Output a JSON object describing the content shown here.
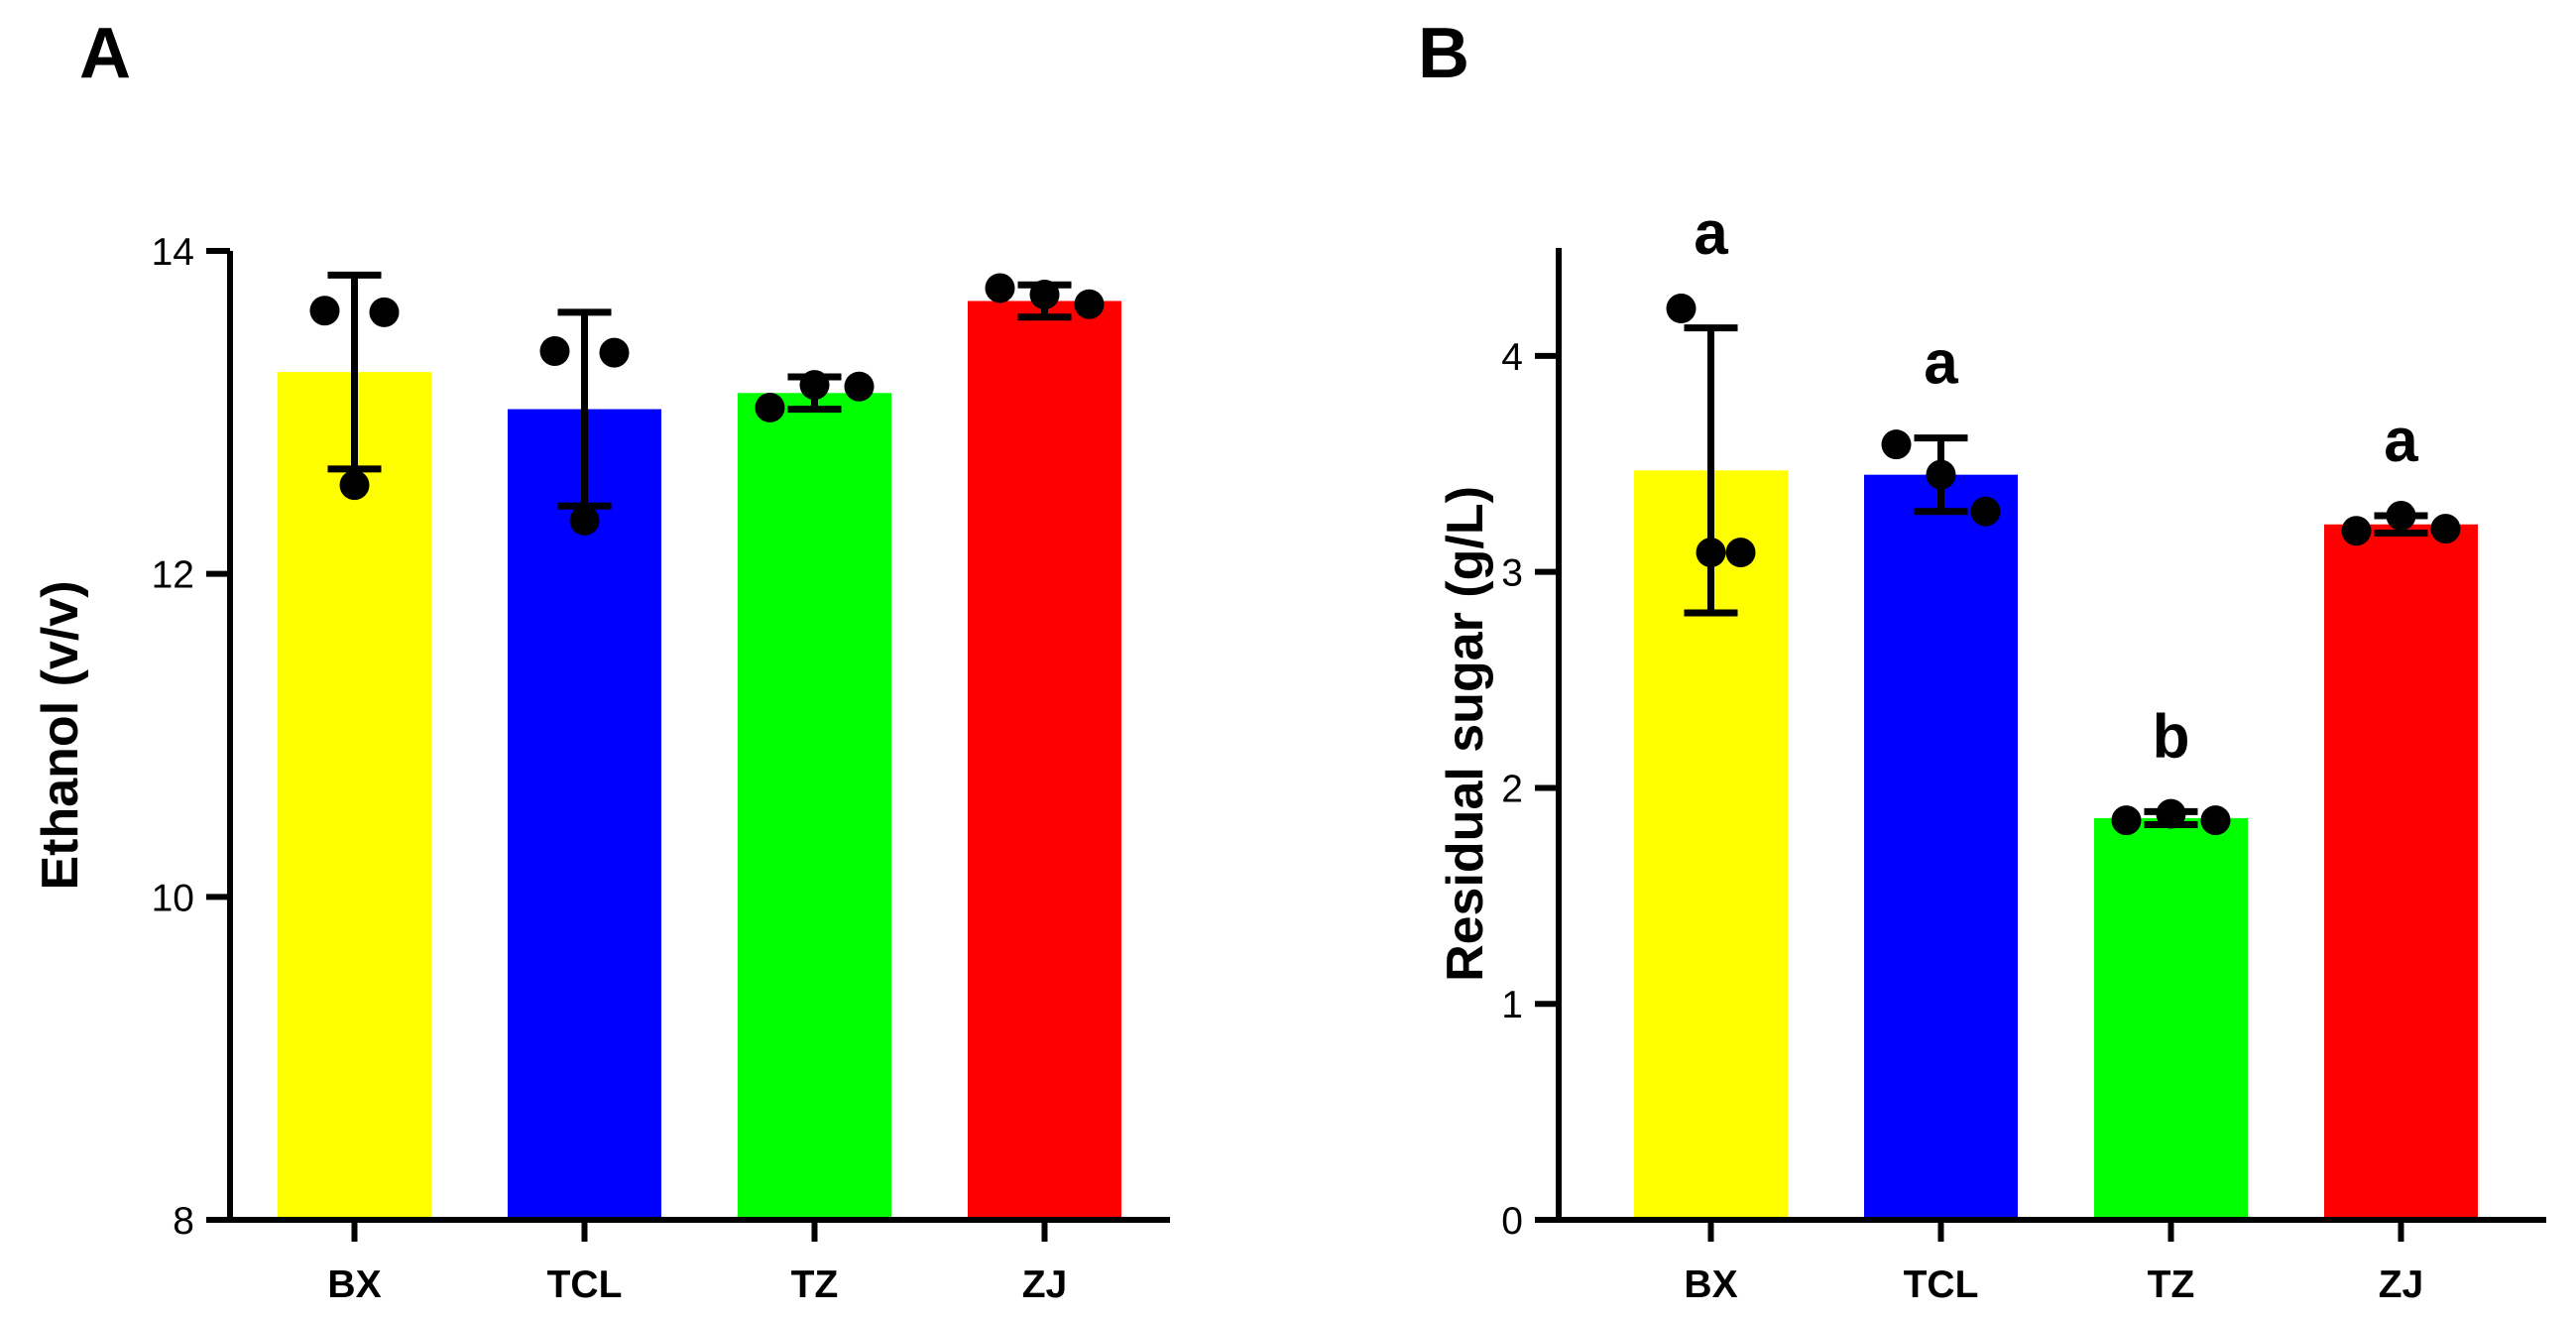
{
  "chart_data": [
    {
      "panel": "A",
      "type": "bar",
      "title": "",
      "xlabel": "",
      "ylabel": "Ethanol (v/v)",
      "ylim": [
        8,
        14
      ],
      "yticks": [
        8,
        10,
        12,
        14
      ],
      "categories": [
        "BX",
        "TCL",
        "TZ",
        "ZJ"
      ],
      "colors": [
        "#ffff00",
        "#0000ff",
        "#00ff00",
        "#ff0000"
      ],
      "values": [
        13.25,
        13.02,
        13.12,
        13.69
      ],
      "error": [
        0.6,
        0.6,
        0.1,
        0.1
      ],
      "points": [
        [
          13.63,
          13.62,
          12.55
        ],
        [
          13.38,
          13.37,
          12.33
        ],
        [
          13.03,
          13.17,
          13.16
        ],
        [
          13.77,
          13.73,
          13.67
        ]
      ],
      "significance": []
    },
    {
      "panel": "B",
      "type": "bar",
      "title": "",
      "xlabel": "",
      "ylabel": "Residual sugar (g/L)",
      "ylim": [
        0,
        4.5
      ],
      "yticks": [
        0,
        1,
        2,
        3,
        4
      ],
      "categories": [
        "BX",
        "TCL",
        "TZ",
        "ZJ"
      ],
      "colors": [
        "#ffff00",
        "#0000ff",
        "#00ff00",
        "#ff0000"
      ],
      "values": [
        3.47,
        3.45,
        1.86,
        3.22
      ],
      "error": [
        0.66,
        0.17,
        0.03,
        0.04
      ],
      "points": [
        [
          4.22,
          3.09,
          3.09
        ],
        [
          3.59,
          3.45,
          3.28
        ],
        [
          1.85,
          1.88,
          1.85
        ],
        [
          3.19,
          3.26,
          3.2
        ]
      ],
      "significance": [
        "a",
        "a",
        "b",
        "a"
      ]
    }
  ]
}
